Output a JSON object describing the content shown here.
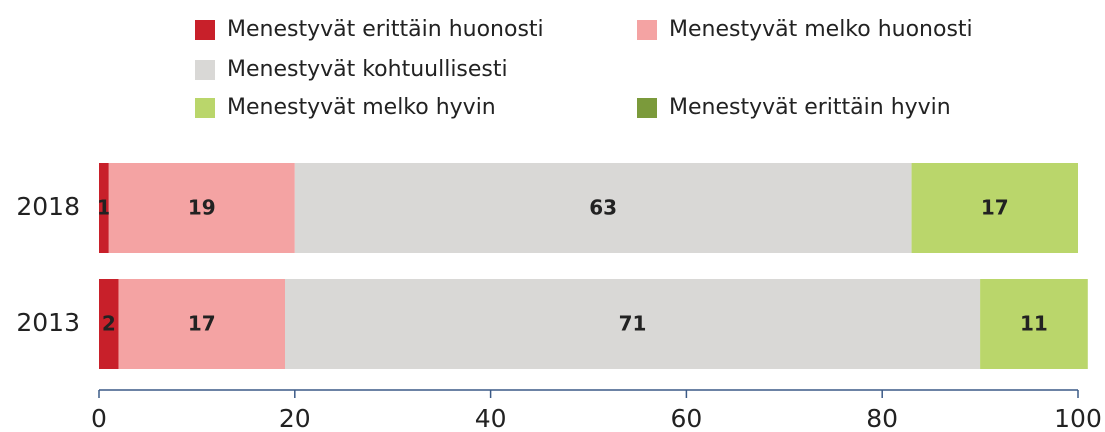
{
  "chart_data": {
    "type": "bar",
    "orientation": "horizontal",
    "stacked": true,
    "categories": [
      "2018",
      "2013"
    ],
    "series": [
      {
        "name": "Menestyvät erittäin huonosti",
        "color": "#c8202a",
        "values": [
          1,
          2
        ]
      },
      {
        "name": "Menestyvät melko huonosti",
        "color": "#f4a3a3",
        "values": [
          19,
          17
        ]
      },
      {
        "name": "Menestyvät kohtuullisesti",
        "color": "#d9d8d6",
        "values": [
          63,
          71
        ]
      },
      {
        "name": "Menestyvät melko hyvin",
        "color": "#bad66b",
        "values": [
          17,
          11
        ]
      },
      {
        "name": "Menestyvät erittäin hyvin",
        "color": "#7b9a3b",
        "values": [
          0,
          0
        ]
      }
    ],
    "xlim": [
      0,
      100
    ],
    "xticks": [
      0,
      20,
      40,
      60,
      80,
      100
    ]
  }
}
